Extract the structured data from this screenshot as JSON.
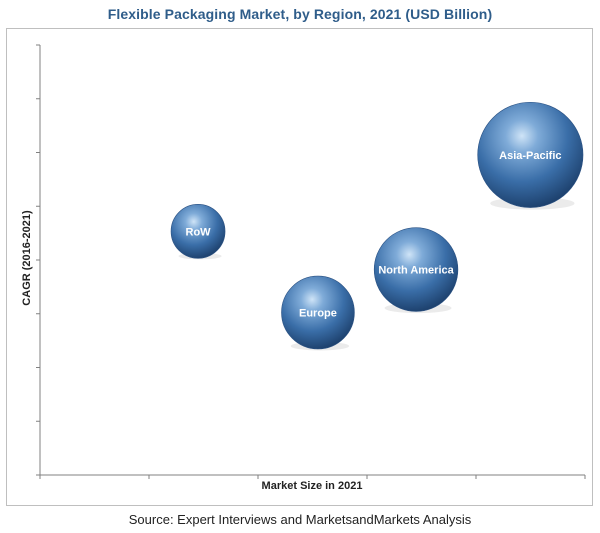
{
  "title": "Flexible Packaging Market, by Region, 2021 (USD Billion)",
  "source": "Source: Expert Interviews and MarketsandMarkets Analysis",
  "chart_data": {
    "type": "scatter",
    "subtype": "bubble",
    "xlabel": "Market Size in 2021",
    "ylabel": "CAGR (2016-2021)",
    "xlim": [
      0,
      10
    ],
    "ylim": [
      0,
      9
    ],
    "x_ticks": 5,
    "y_ticks": 8,
    "grid": false,
    "tick_labels_shown": false,
    "bubble_color": "#3a6ea8",
    "points": [
      {
        "label": "RoW",
        "x": 2.9,
        "y": 5.1,
        "size": 1.0
      },
      {
        "label": "Europe",
        "x": 5.1,
        "y": 3.4,
        "size": 1.35
      },
      {
        "label": "North America",
        "x": 6.9,
        "y": 4.3,
        "size": 1.55
      },
      {
        "label": "Asia-Pacific",
        "x": 10.2,
        "y": 6.7,
        "size": 1.95
      }
    ]
  }
}
